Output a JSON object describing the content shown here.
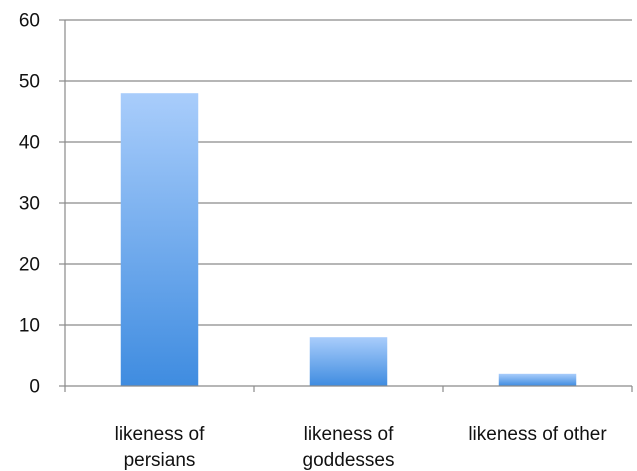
{
  "chart_data": {
    "type": "bar",
    "categories": [
      [
        "likeness of",
        "persians"
      ],
      [
        "likeness of",
        "goddesses"
      ],
      [
        "likeness of other"
      ]
    ],
    "values": [
      48,
      8,
      2
    ],
    "ylim": [
      0,
      60
    ],
    "yticks": [
      "0",
      "10",
      "20",
      "30",
      "40",
      "50",
      "60"
    ],
    "grid": true,
    "legend": "none",
    "colors": {
      "bar_top": "#a9cdfb",
      "bar_bottom": "#3f8ce0",
      "grid": "#8a8a8a",
      "axis": "#8a8a8a"
    }
  }
}
